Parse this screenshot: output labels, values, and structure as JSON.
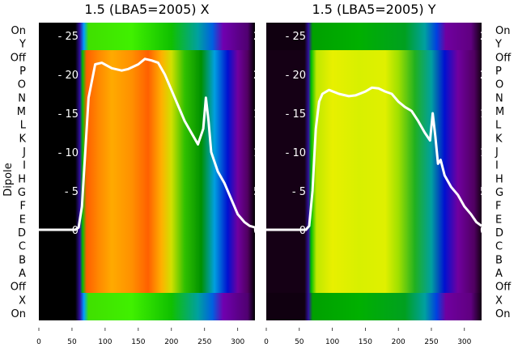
{
  "chart_data": [
    {
      "type": "heatmap",
      "title": "1.5 (LBA5=2005) X",
      "ylabel": "Dipole",
      "row_labels": [
        "On",
        "Y",
        "Off",
        "P",
        "O",
        "N",
        "M",
        "L",
        "K",
        "J",
        "I",
        "H",
        "G",
        "F",
        "E",
        "D",
        "C",
        "B",
        "A",
        "Off",
        "X",
        "On"
      ],
      "x_ticks": [
        0,
        50,
        100,
        150,
        200,
        250,
        300
      ],
      "xlim": [
        0,
        326
      ],
      "overlay_y_ticks": [
        0,
        5,
        10,
        15,
        20,
        25
      ],
      "overlay_ylim": [
        0,
        26.5
      ],
      "band_colors_outer": [
        [
          0,
          "#000000"
        ],
        [
          55,
          "#000000"
        ],
        [
          62,
          "#3010a0"
        ],
        [
          68,
          "#00a0ff"
        ],
        [
          75,
          "#40e000"
        ],
        [
          140,
          "#40f000"
        ],
        [
          200,
          "#10c000"
        ],
        [
          240,
          "#00a0a0"
        ],
        [
          262,
          "#0060e0"
        ],
        [
          278,
          "#7000b0"
        ],
        [
          315,
          "#500070"
        ],
        [
          326,
          "#000000"
        ]
      ],
      "band_colors_inner": [
        [
          0,
          "#000000"
        ],
        [
          55,
          "#000000"
        ],
        [
          62,
          "#3010a0"
        ],
        [
          66,
          "#00c000"
        ],
        [
          72,
          "#ff6000"
        ],
        [
          90,
          "#ff8800"
        ],
        [
          110,
          "#ffaa00"
        ],
        [
          140,
          "#ff9000"
        ],
        [
          165,
          "#ff6000"
        ],
        [
          185,
          "#ffb000"
        ],
        [
          200,
          "#d0e000"
        ],
        [
          220,
          "#30c000"
        ],
        [
          245,
          "#009000"
        ],
        [
          265,
          "#00a0e0"
        ],
        [
          285,
          "#0010d0"
        ],
        [
          300,
          "#7000a0"
        ],
        [
          315,
          "#500060"
        ],
        [
          326,
          "#000000"
        ]
      ],
      "curve": {
        "x": [
          0,
          55,
          60,
          65,
          70,
          75,
          85,
          95,
          110,
          125,
          135,
          150,
          160,
          170,
          180,
          190,
          200,
          210,
          220,
          230,
          240,
          248,
          252,
          256,
          260,
          264,
          270,
          280,
          290,
          300,
          310,
          318,
          326
        ],
        "y": [
          0,
          0,
          0.3,
          3,
          10,
          17,
          21.3,
          21.5,
          20.8,
          20.5,
          20.7,
          21.3,
          22,
          21.8,
          21.5,
          20,
          18,
          16,
          14,
          12.5,
          11,
          13,
          17,
          14,
          10,
          9,
          7.5,
          6,
          4,
          2,
          1,
          0.5,
          0.3
        ]
      }
    },
    {
      "type": "heatmap",
      "title": "1.5 (LBA5=2005) Y",
      "row_labels": [
        "On",
        "Y",
        "Off",
        "P",
        "O",
        "N",
        "M",
        "L",
        "K",
        "J",
        "I",
        "H",
        "G",
        "F",
        "E",
        "D",
        "C",
        "B",
        "A",
        "Off",
        "X",
        "On"
      ],
      "x_ticks": [
        0,
        50,
        100,
        150,
        200,
        250,
        300
      ],
      "xlim": [
        0,
        326
      ],
      "overlay_y_ticks": [
        0,
        5,
        10,
        15,
        20,
        25
      ],
      "overlay_ylim": [
        0,
        26.5
      ],
      "band_colors_outer": [
        [
          0,
          "#100010"
        ],
        [
          58,
          "#100010"
        ],
        [
          64,
          "#3010a0"
        ],
        [
          70,
          "#00a000"
        ],
        [
          140,
          "#00b000"
        ],
        [
          210,
          "#00a020"
        ],
        [
          240,
          "#00a0a0"
        ],
        [
          258,
          "#0040e0"
        ],
        [
          272,
          "#7000a0"
        ],
        [
          310,
          "#600080"
        ],
        [
          326,
          "#100010"
        ]
      ],
      "band_colors_inner": [
        [
          0,
          "#150015"
        ],
        [
          58,
          "#150015"
        ],
        [
          64,
          "#3010a0"
        ],
        [
          68,
          "#00c000"
        ],
        [
          76,
          "#c0e800"
        ],
        [
          100,
          "#e8f000"
        ],
        [
          140,
          "#d8f000"
        ],
        [
          180,
          "#e0f000"
        ],
        [
          200,
          "#a0e000"
        ],
        [
          225,
          "#20b020"
        ],
        [
          250,
          "#00a0a0"
        ],
        [
          270,
          "#0010d0"
        ],
        [
          290,
          "#7000a0"
        ],
        [
          315,
          "#500060"
        ],
        [
          326,
          "#150015"
        ]
      ],
      "curve": {
        "x": [
          0,
          60,
          65,
          70,
          75,
          80,
          85,
          95,
          110,
          125,
          135,
          150,
          160,
          170,
          180,
          190,
          200,
          210,
          220,
          230,
          240,
          248,
          252,
          256,
          260,
          264,
          270,
          280,
          290,
          300,
          310,
          318,
          326
        ],
        "y": [
          0,
          0,
          0.5,
          5,
          13,
          16.5,
          17.5,
          18,
          17.5,
          17.2,
          17.3,
          17.8,
          18.3,
          18.2,
          17.8,
          17.5,
          16.5,
          15.8,
          15.3,
          14,
          12.5,
          11.5,
          15,
          12,
          8.5,
          9,
          7,
          5.5,
          4.5,
          3,
          2,
          1,
          0.5
        ]
      }
    }
  ]
}
